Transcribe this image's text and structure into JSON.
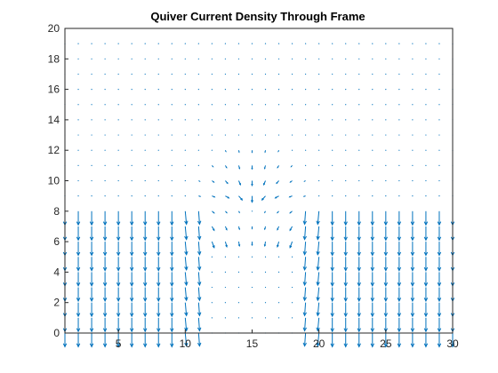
{
  "chart_data": {
    "type": "quiver",
    "title": "Quiver Current Density Through Frame",
    "xlabel": "",
    "ylabel": "",
    "xlim": [
      1,
      30
    ],
    "ylim": [
      0,
      20
    ],
    "x_ticks": [
      5,
      10,
      15,
      20,
      25,
      30
    ],
    "y_ticks": [
      0,
      2,
      4,
      6,
      8,
      10,
      12,
      14,
      16,
      18,
      20
    ],
    "grid": false,
    "legend": "none",
    "arrow_color": "#0072bd",
    "grid_spacing": 1,
    "field": {
      "description_regions": [
        {
          "region": "frame",
          "x_range": [
            1,
            30
          ],
          "y_range": [
            0,
            8
          ],
          "direction_deg": -90,
          "max_magnitude": 1.0
        },
        {
          "region": "gap-edges",
          "x_range": [
            10,
            20
          ],
          "y_range": [
            4,
            8
          ],
          "direction": "converging toward x=15",
          "max_magnitude": 0.6
        },
        {
          "region": "upper-dome",
          "center": [
            15,
            8
          ],
          "radius": 4.5,
          "direction": "pointing inward to center",
          "max_magnitude": 0.55
        },
        {
          "region": "background",
          "y_range": [
            8,
            19
          ],
          "max_magnitude": 0.05
        }
      ]
    }
  }
}
